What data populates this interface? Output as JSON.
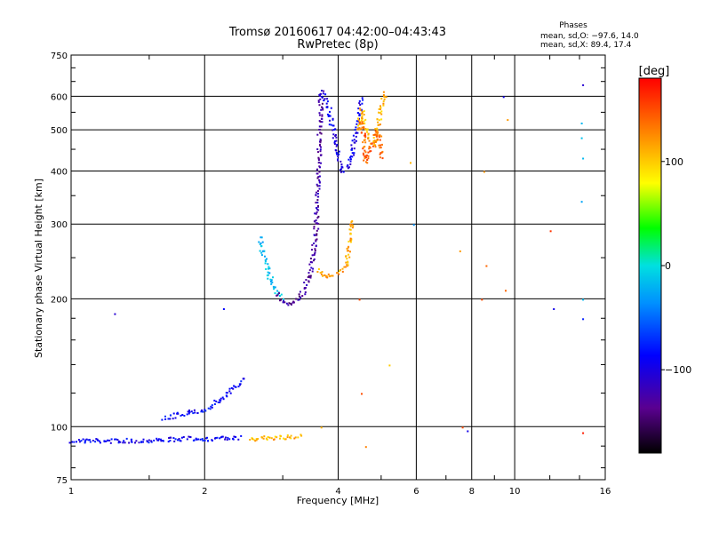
{
  "chart_data": {
    "type": "scatter",
    "title": "Tromsø 20160617 04:42:00–04:43:43",
    "subtitle": "RwPretec (8p)",
    "stats": {
      "heading": "Phases",
      "line_o": "mean, sd,O: −97.6, 14.0",
      "line_x": "mean, sd,X:  89.4, 17.4"
    },
    "xlabel": "Frequency [MHz]",
    "ylabel": "Stationary phase Virtual Height [km]",
    "x_scale": "log",
    "y_scale": "log",
    "xlim": [
      1,
      16
    ],
    "ylim": [
      75,
      750
    ],
    "x_ticks": [
      {
        "value": 1,
        "label": "1"
      },
      {
        "value": 2,
        "label": "2"
      },
      {
        "value": 4,
        "label": "4"
      },
      {
        "value": 6,
        "label": "6"
      },
      {
        "value": 8,
        "label": "8"
      },
      {
        "value": 10,
        "label": "10"
      },
      {
        "value": 16,
        "label": "16"
      }
    ],
    "y_ticks": [
      {
        "value": 75,
        "label": "75"
      },
      {
        "value": 100,
        "label": "100"
      },
      {
        "value": 200,
        "label": "200"
      },
      {
        "value": 300,
        "label": "300"
      },
      {
        "value": 400,
        "label": "400"
      },
      {
        "value": 500,
        "label": "500"
      },
      {
        "value": 600,
        "label": "600"
      },
      {
        "value": 750,
        "label": "750"
      }
    ],
    "grid": true,
    "colorbar": {
      "label": "[deg]",
      "range": [
        -180,
        180
      ],
      "ticks": [
        {
          "value": 100,
          "label": "100"
        },
        {
          "value": 0,
          "label": "0"
        },
        {
          "value": -100,
          "label": "−100"
        }
      ]
    },
    "traces": [
      {
        "phase": -95,
        "points": [
          [
            1.0,
            93
          ],
          [
            1.2,
            93
          ],
          [
            1.4,
            93
          ],
          [
            1.6,
            93.5
          ],
          [
            1.8,
            94
          ],
          [
            2.0,
            94
          ],
          [
            2.2,
            94
          ],
          [
            2.4,
            94.5
          ]
        ]
      },
      {
        "phase": -90,
        "points": [
          [
            1.6,
            105
          ],
          [
            1.8,
            108
          ],
          [
            2.0,
            110
          ],
          [
            2.2,
            118
          ],
          [
            2.35,
            125
          ],
          [
            2.45,
            132
          ]
        ]
      },
      {
        "phase": 110,
        "points": [
          [
            2.5,
            94
          ],
          [
            2.8,
            94.5
          ],
          [
            3.1,
            95
          ],
          [
            3.3,
            95.5
          ]
        ]
      },
      {
        "phase": -20,
        "points": [
          [
            2.65,
            280
          ],
          [
            2.7,
            255
          ],
          [
            2.8,
            225
          ],
          [
            2.9,
            208
          ],
          [
            3.0,
            200
          ]
        ]
      },
      {
        "phase": -130,
        "points": [
          [
            2.9,
            205
          ],
          [
            3.0,
            197
          ],
          [
            3.15,
            196
          ],
          [
            3.3,
            205
          ],
          [
            3.45,
            230
          ],
          [
            3.55,
            290
          ],
          [
            3.6,
            400
          ],
          [
            3.62,
            500
          ],
          [
            3.65,
            620
          ]
        ]
      },
      {
        "phase": -100,
        "points": [
          [
            3.65,
            620
          ],
          [
            3.8,
            560
          ],
          [
            3.95,
            460
          ],
          [
            4.05,
            400
          ],
          [
            4.2,
            410
          ],
          [
            4.35,
            480
          ],
          [
            4.5,
            600
          ]
        ]
      },
      {
        "phase": 115,
        "points": [
          [
            3.55,
            235
          ],
          [
            3.75,
            225
          ],
          [
            3.95,
            230
          ],
          [
            4.15,
            240
          ],
          [
            4.3,
            310
          ]
        ]
      },
      {
        "phase": 110,
        "points": [
          [
            4.4,
            500
          ],
          [
            4.5,
            560
          ],
          [
            4.65,
            480
          ],
          [
            4.8,
            460
          ],
          [
            4.95,
            550
          ],
          [
            5.1,
            620
          ]
        ]
      },
      {
        "phase": 140,
        "points": [
          [
            4.5,
            530
          ],
          [
            4.6,
            420
          ],
          [
            4.75,
            460
          ],
          [
            4.9,
            500
          ],
          [
            5.0,
            430
          ]
        ]
      }
    ],
    "scatter": [
      {
        "x": 1.25,
        "y": 185,
        "phase": -110
      },
      {
        "x": 2.2,
        "y": 190,
        "phase": -90
      },
      {
        "x": 3.65,
        "y": 100,
        "phase": 110
      },
      {
        "x": 4.45,
        "y": 200,
        "phase": 150
      },
      {
        "x": 4.5,
        "y": 120,
        "phase": 150
      },
      {
        "x": 4.6,
        "y": 90,
        "phase": 130
      },
      {
        "x": 5.2,
        "y": 140,
        "phase": 100
      },
      {
        "x": 5.8,
        "y": 420,
        "phase": 110
      },
      {
        "x": 5.9,
        "y": 300,
        "phase": -40
      },
      {
        "x": 7.5,
        "y": 260,
        "phase": 120
      },
      {
        "x": 7.6,
        "y": 100,
        "phase": 150
      },
      {
        "x": 7.8,
        "y": 98,
        "phase": -100
      },
      {
        "x": 8.5,
        "y": 400,
        "phase": 120
      },
      {
        "x": 8.6,
        "y": 240,
        "phase": 140
      },
      {
        "x": 8.4,
        "y": 200,
        "phase": 150
      },
      {
        "x": 9.4,
        "y": 600,
        "phase": -100
      },
      {
        "x": 9.6,
        "y": 530,
        "phase": 120
      },
      {
        "x": 9.5,
        "y": 210,
        "phase": 140
      },
      {
        "x": 12,
        "y": 290,
        "phase": 160
      },
      {
        "x": 12.2,
        "y": 190,
        "phase": -100
      },
      {
        "x": 14.2,
        "y": 640,
        "phase": -110
      },
      {
        "x": 14.1,
        "y": 520,
        "phase": -20
      },
      {
        "x": 14.1,
        "y": 480,
        "phase": -15
      },
      {
        "x": 14.2,
        "y": 430,
        "phase": -20
      },
      {
        "x": 14.1,
        "y": 340,
        "phase": -30
      },
      {
        "x": 14.2,
        "y": 200,
        "phase": -20
      },
      {
        "x": 14.2,
        "y": 180,
        "phase": -80
      },
      {
        "x": 14.2,
        "y": 97,
        "phase": 170
      }
    ]
  }
}
